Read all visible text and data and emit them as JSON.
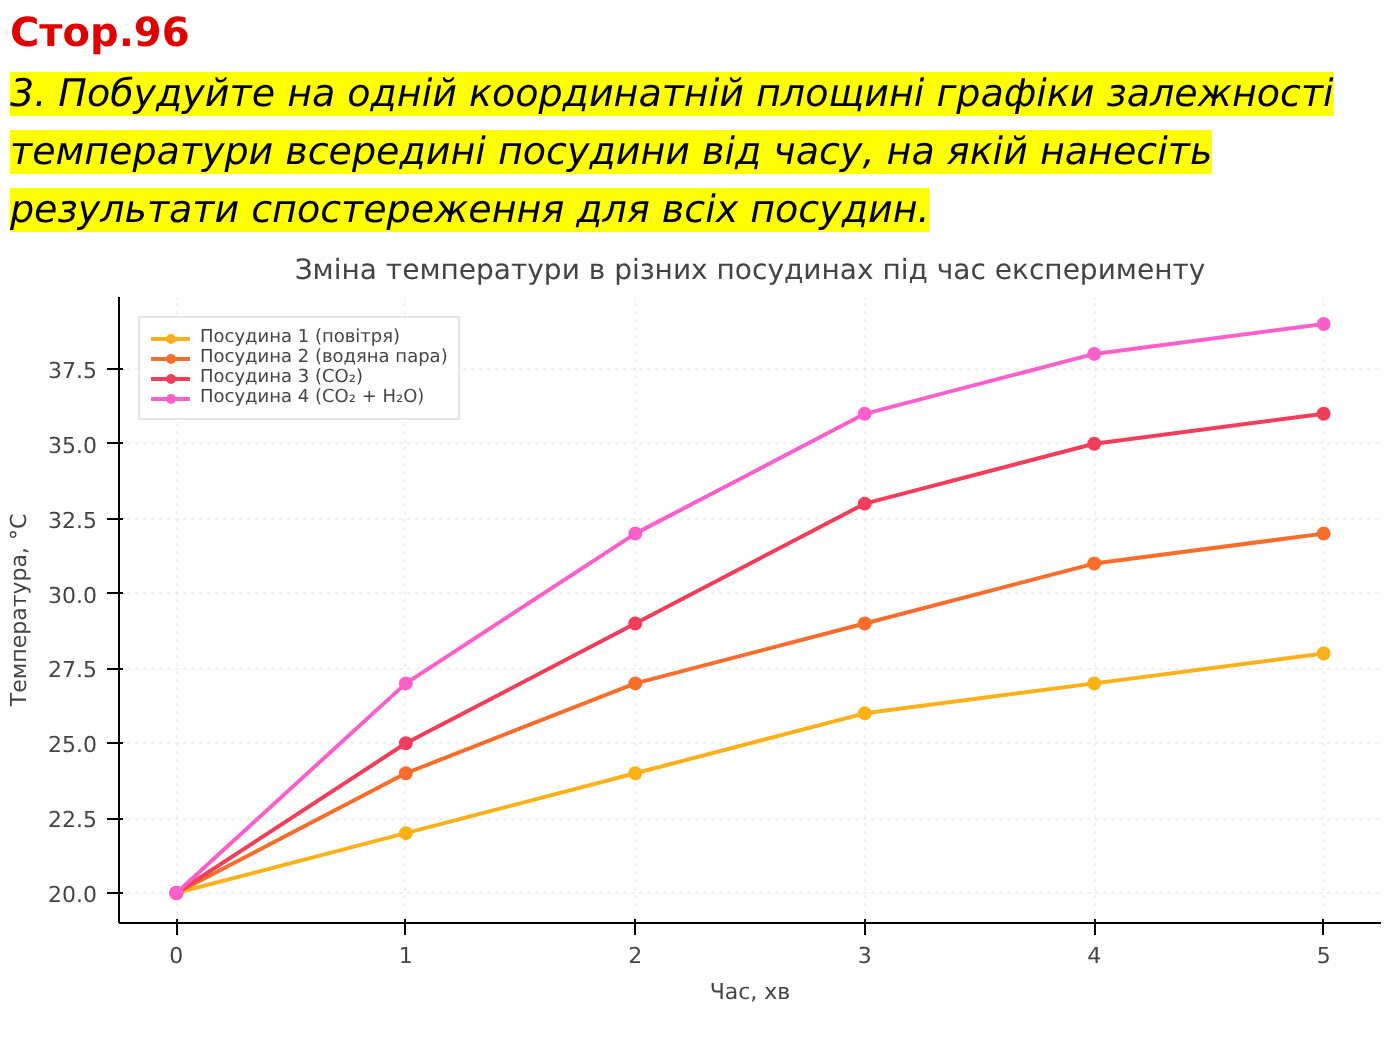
{
  "chart_data": {
    "type": "line",
    "title": "Зміна температури в різних посудинах під час експерименту",
    "xlabel": "Час, хв",
    "ylabel": "Температура, °C",
    "annotations": [
      "Стор.96",
      "3. Побудуйте на одній координатній площині графіки залежності температури всередині посудини від часу, на якій нанесіть результати спостереження для всіх посудин."
    ],
    "x": [
      0,
      1,
      2,
      3,
      4,
      5
    ],
    "series": [
      {
        "name": "Посудина 1 (повітря)",
        "color": "#fbb117",
        "values": [
          20,
          22,
          24,
          26,
          27,
          28
        ]
      },
      {
        "name": "Посудина 2 (водяна пара)",
        "color": "#f96d2b",
        "values": [
          20,
          24,
          27,
          29,
          31,
          32
        ]
      },
      {
        "name": "Посудина 3 (CO₂)",
        "color": "#f23e5a",
        "values": [
          20,
          25,
          29,
          33,
          35,
          36
        ]
      },
      {
        "name": "Посудина 4 (CO₂ + H₂O)",
        "color": "#fb5fcb",
        "values": [
          20,
          27,
          32,
          36,
          38,
          39
        ]
      }
    ],
    "xlim": [
      -0.25,
      5.25
    ],
    "ylim": [
      19.0,
      39.9
    ],
    "xticks": [
      0,
      1,
      2,
      3,
      4,
      5
    ],
    "yticks": [
      {
        "value": 20,
        "label": "20.0"
      },
      22.5,
      {
        "value": 25,
        "label": "25.0"
      },
      27.5,
      {
        "value": 30,
        "label": "30.0"
      },
      32.5,
      {
        "value": 35,
        "label": "35.0"
      },
      37.5
    ],
    "grid": true,
    "legend": "top left",
    "marker": "circle",
    "line_style": "solid"
  }
}
